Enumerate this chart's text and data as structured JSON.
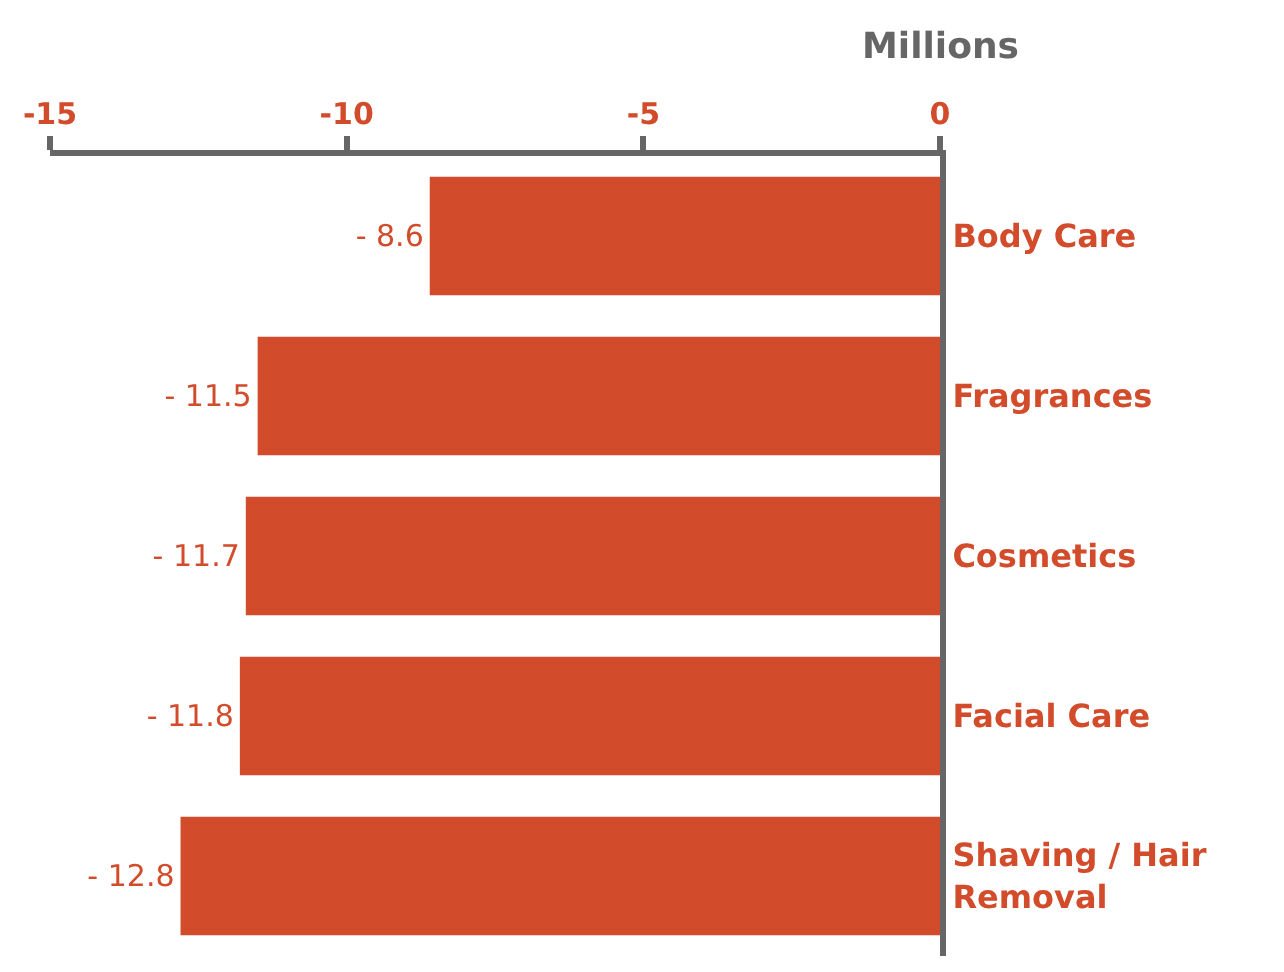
{
  "chart_data": {
    "type": "bar",
    "orientation": "horizontal",
    "xlabel": "Millions",
    "categories": [
      "Body Care",
      "Fragrances",
      "Cosmetics",
      "Facial Care",
      "Shaving / Hair Removal"
    ],
    "values": [
      -8.6,
      -11.5,
      -11.7,
      -11.8,
      -12.8
    ],
    "value_labels": [
      "- 8.6",
      "- 11.5",
      "- 11.7",
      "- 11.8",
      "- 12.8"
    ],
    "color": "#d24b2a",
    "xlim": [
      -15,
      0
    ],
    "xticks": [
      -15,
      -10,
      -5,
      0
    ],
    "legend": false
  }
}
